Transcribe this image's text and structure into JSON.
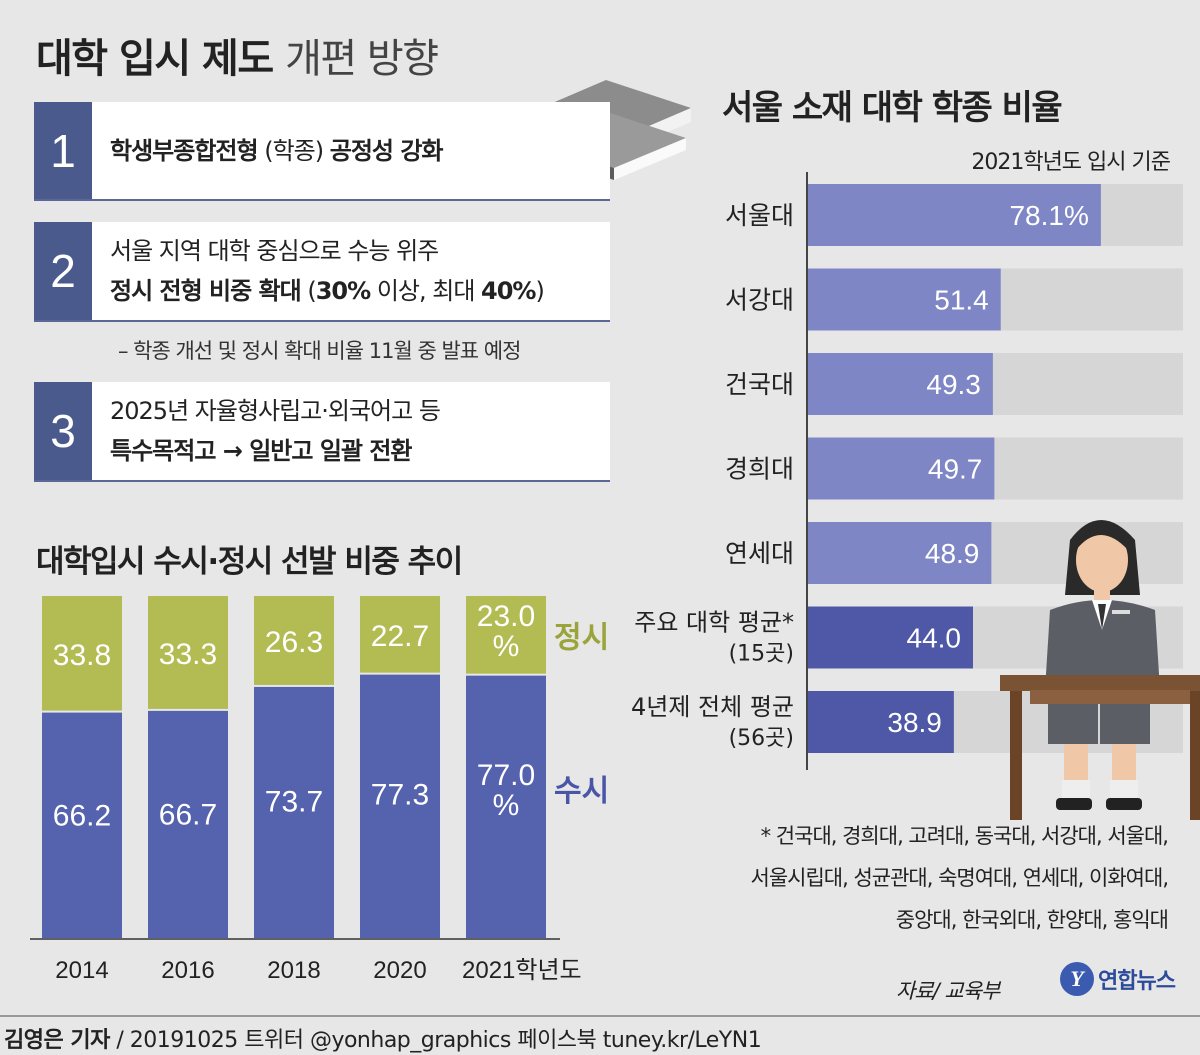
{
  "title": {
    "bold": "대학 입시 제도",
    "light": "개편 방향"
  },
  "policies": [
    {
      "number": "1",
      "line1_bold": "학생부종합전형",
      "line1_paren": "(학종)",
      "line1_bold2": "공정성 강화"
    },
    {
      "number": "2",
      "line1": "서울 지역 대학 중심으로 수능 위주",
      "line2_bold": "정시 전형 비중 확대",
      "line2_paren_a": "(",
      "line2_num1": "30%",
      "line2_mid": " 이상, 최대 ",
      "line2_num2": "40%",
      "line2_close": ")"
    },
    {
      "number": "3",
      "line1": "2025년 자율형사립고·외국어고 등",
      "line2_bold": "특수목적고 → 일반고 일괄 전환"
    }
  ],
  "policy_note": "– 학종 개선 및 정시 확대 비율 11월 중 발표 예정",
  "chart_data": [
    {
      "type": "bar",
      "title": "대학입시 수시·정시 선발 비중 추이",
      "categories": [
        "2014",
        "2016",
        "2018",
        "2020",
        "2021"
      ],
      "category_suffix_last": "학년도",
      "stacked": true,
      "ylim": [
        0,
        100
      ],
      "series": [
        {
          "name": "수시",
          "values": [
            66.2,
            66.7,
            73.7,
            77.3,
            77.0
          ],
          "labels": [
            "66.2",
            "66.7",
            "73.7",
            "77.3",
            "77.0\n%"
          ],
          "color": "#5562ae"
        },
        {
          "name": "정시",
          "values": [
            33.8,
            33.3,
            26.3,
            22.7,
            23.0
          ],
          "labels": [
            "33.8",
            "33.3",
            "26.3",
            "22.7",
            "23.0\n%"
          ],
          "color": "#b3bb53"
        }
      ]
    },
    {
      "type": "bar",
      "orientation": "horizontal",
      "title": "서울 소재 대학 학종 비율",
      "subtitle": "2021학년도 입시 기준",
      "categories": [
        "서울대",
        "서강대",
        "건국대",
        "경희대",
        "연세대",
        "주요 대학 평균*",
        "4년제 전체 평균"
      ],
      "category_sublabels": [
        "",
        "",
        "",
        "",
        "",
        "(15곳)",
        "(56곳)"
      ],
      "values": [
        78.1,
        51.4,
        49.3,
        49.7,
        48.9,
        44.0,
        38.9
      ],
      "labels": [
        "78.1%",
        "51.4",
        "49.3",
        "49.7",
        "48.9",
        "44.0",
        "38.9"
      ],
      "colors": [
        "#7f86c5",
        "#7f86c5",
        "#7f86c5",
        "#7f86c5",
        "#7f86c5",
        "#4e58a6",
        "#4e58a6"
      ],
      "xlim": [
        0,
        100
      ]
    }
  ],
  "footnote": [
    "* 건국대, 경희대, 고려대, 동국대, 서강대, 서울대,",
    "서울시립대, 성균관대, 숙명여대, 연세대, 이화여대,",
    "중앙대, 한국외대, 한양대, 홍익대"
  ],
  "source": "자료/ 교육부",
  "logo": {
    "mark": "Y",
    "text": "연합뉴스"
  },
  "credit": {
    "author": "김영은 기자",
    "rest": " / 20191025  트위터 @yonhap_graphics  페이스북 tuney.kr/LeYN1"
  },
  "colors": {
    "policy_num_bg": "#4a5a8c",
    "background": "#e7e7e7"
  },
  "icons": [
    "books-icon",
    "student-illustration",
    "yonhap-logo"
  ]
}
